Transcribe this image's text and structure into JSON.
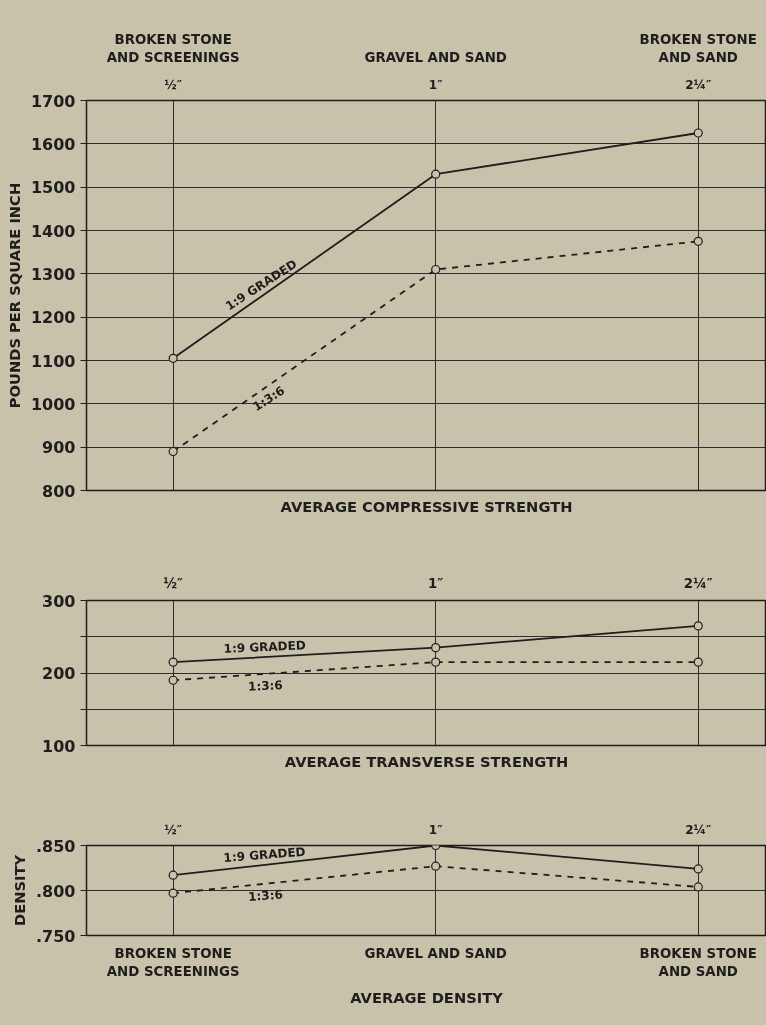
{
  "chart_data": [
    {
      "type": "line",
      "title": "AVERAGE COMPRESSIVE STRENGTH",
      "ylabel": "POUNDS PER SQUARE INCH",
      "categories": [
        "BROKEN STONE\nAND SCREENINGS",
        "GRAVEL AND SAND",
        "BROKEN STONE\nAND SAND"
      ],
      "annotations": [
        "½″",
        "1″",
        "2¼″"
      ],
      "ylim": [
        800,
        1700
      ],
      "yticks": [
        800,
        900,
        1000,
        1100,
        1200,
        1300,
        1400,
        1500,
        1600,
        1700
      ],
      "grid": true,
      "marker": "circle",
      "series": [
        {
          "name": "1:9 GRADED",
          "color": "#1e1e1e",
          "line_style": "solid",
          "values": [
            1105,
            1530,
            1625
          ]
        },
        {
          "name": "1:3:6",
          "color": "#1e1e1e",
          "line_style": "dashed",
          "values": [
            890,
            1310,
            1375
          ]
        }
      ]
    },
    {
      "type": "line",
      "title": "AVERAGE TRANSVERSE STRENGTH",
      "categories": [
        "½″",
        "1″",
        "2¼″"
      ],
      "ylim": [
        100,
        300
      ],
      "yticks": [
        100,
        {
          "value": 150,
          "label": null
        },
        200,
        {
          "value": 250,
          "label": null
        },
        300
      ],
      "grid": true,
      "marker": "circle",
      "series": [
        {
          "name": "1:9 GRADED",
          "color": "#1e1e1e",
          "line_style": "solid",
          "values": [
            215,
            235,
            265
          ]
        },
        {
          "name": "1:3:6",
          "color": "#1e1e1e",
          "line_style": "dashed",
          "values": [
            190,
            215,
            215
          ]
        }
      ]
    },
    {
      "type": "line",
      "title": "AVERAGE DENSITY",
      "ylabel": "DENSITY",
      "categories": [
        "BROKEN STONE\nAND SCREENINGS",
        "GRAVEL AND SAND",
        "BROKEN STONE\nAND SAND"
      ],
      "annotations": [
        "½″",
        "1″",
        "2¼″"
      ],
      "ylim": [
        0.75,
        0.85
      ],
      "yticks": [
        {
          "value": 0.75,
          "label": ".750"
        },
        {
          "value": 0.8,
          "label": ".800"
        },
        {
          "value": 0.85,
          "label": ".850"
        }
      ],
      "grid": true,
      "marker": "circle",
      "series": [
        {
          "name": "1:9 GRADED",
          "color": "#1e1e1e",
          "line_style": "solid",
          "values": [
            0.817,
            0.85,
            0.824
          ]
        },
        {
          "name": "1:3:6",
          "color": "#1e1e1e",
          "line_style": "dashed",
          "values": [
            0.797,
            0.827,
            0.804
          ]
        }
      ]
    }
  ]
}
